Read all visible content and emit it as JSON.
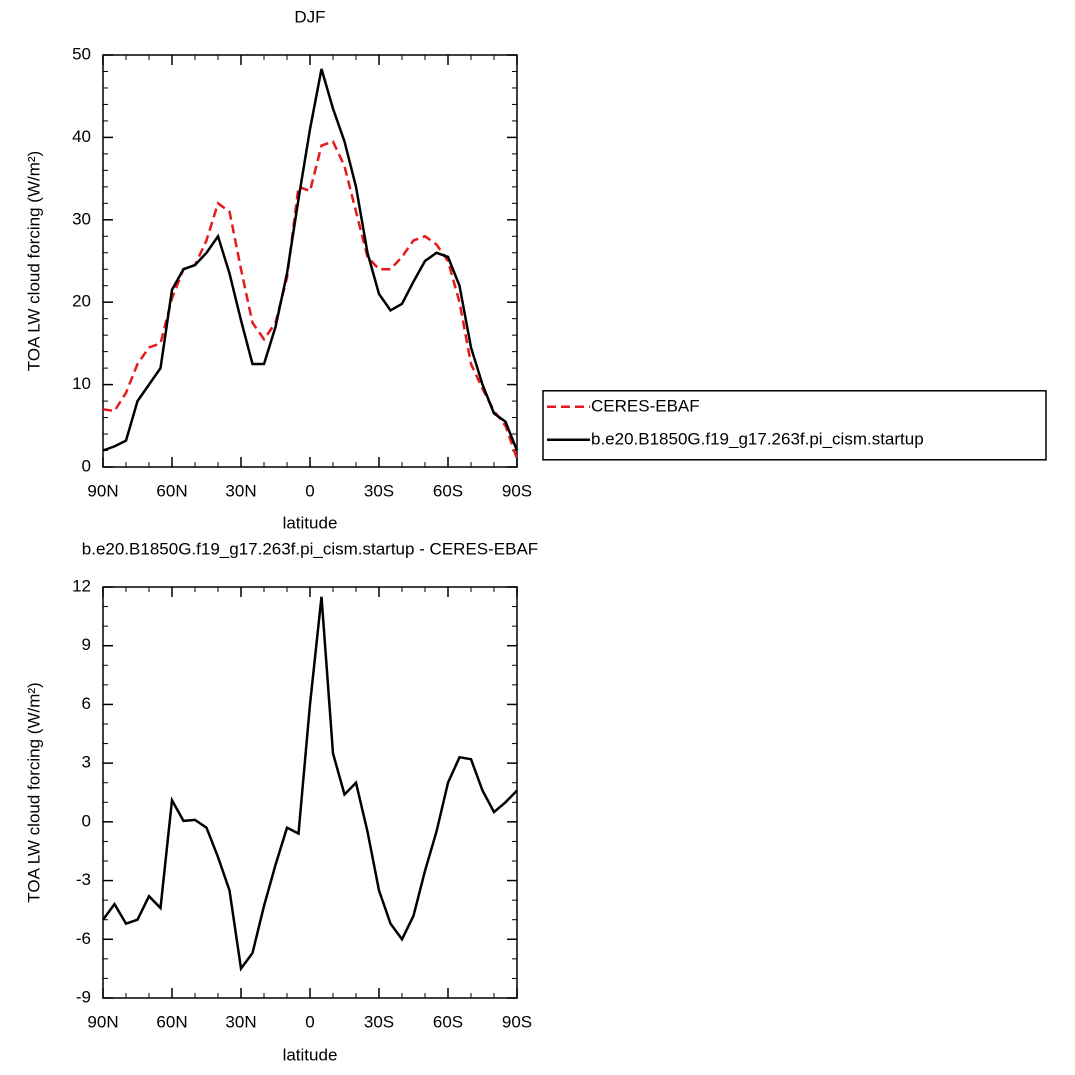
{
  "chart_data": [
    {
      "type": "line",
      "title": "DJF",
      "x_label": "latitude",
      "y_label": "TOA LW cloud forcing (W/m²)",
      "x": [
        90,
        85,
        80,
        75,
        70,
        65,
        60,
        55,
        50,
        45,
        40,
        35,
        30,
        25,
        20,
        15,
        10,
        5,
        0,
        -5,
        -10,
        -15,
        -20,
        -25,
        -30,
        -35,
        -40,
        -45,
        -50,
        -55,
        -60,
        -65,
        -70,
        -75,
        -80,
        -85,
        -90
      ],
      "series": [
        {
          "name": "CERES-EBAF",
          "color": "#e41a1c",
          "dash": "dashed",
          "values": [
            7,
            6.8,
            9,
            12.5,
            14.5,
            15,
            20.5,
            24,
            24.5,
            27.5,
            32,
            31,
            24,
            17.5,
            15.5,
            17.5,
            23,
            34,
            33.5,
            39,
            39.5,
            36.5,
            31,
            25.5,
            24,
            24,
            25.5,
            27.5,
            28,
            27,
            25,
            20,
            12.5,
            9.5,
            6.8,
            5,
            1
          ]
        },
        {
          "name": "b.e20.B1850G.f19_g17.263f.pi_cism.startup",
          "color": "#000000",
          "dash": "solid",
          "values": [
            2,
            2.5,
            3.2,
            8,
            10,
            12,
            21.5,
            24,
            24.5,
            26,
            28,
            23.5,
            17.8,
            12.5,
            12.5,
            17,
            23.5,
            32.5,
            41,
            48.3,
            43.5,
            39.5,
            34,
            26,
            21,
            19,
            19.8,
            22.5,
            25,
            26,
            25.5,
            22,
            14.5,
            10,
            6.5,
            5.5,
            2
          ]
        }
      ],
      "xlim": [
        90,
        -90
      ],
      "xticks": [
        {
          "value": 90,
          "label": "90N"
        },
        {
          "value": 60,
          "label": "60N"
        },
        {
          "value": 30,
          "label": "30N"
        },
        0,
        {
          "value": -30,
          "label": "30S"
        },
        {
          "value": -60,
          "label": "60S"
        },
        {
          "value": -90,
          "label": "90S"
        }
      ],
      "ylim": [
        0,
        50
      ],
      "yticks": [
        0,
        10,
        20,
        30,
        40,
        50
      ],
      "legend": "right"
    },
    {
      "type": "line",
      "title": "b.e20.B1850G.f19_g17.263f.pi_cism.startup - CERES-EBAF",
      "x_label": "latitude",
      "y_label": "TOA LW cloud forcing (W/m²)",
      "x": [
        90,
        85,
        80,
        75,
        70,
        65,
        60,
        55,
        50,
        45,
        40,
        35,
        30,
        25,
        20,
        15,
        10,
        5,
        0,
        -5,
        -10,
        -15,
        -20,
        -25,
        -30,
        -35,
        -40,
        -45,
        -50,
        -55,
        -60,
        -65,
        -70,
        -75,
        -80,
        -85,
        -90
      ],
      "color": "#000000",
      "values": [
        -5,
        -4.2,
        -5.2,
        -5,
        -3.8,
        -4.4,
        1.1,
        0.05,
        0.1,
        -0.3,
        -1.8,
        -3.5,
        -7.5,
        -6.7,
        -4.3,
        -2.2,
        -0.3,
        -0.6,
        6,
        11.5,
        3.5,
        1.4,
        2,
        -0.5,
        -3.5,
        -5.2,
        -6,
        -4.8,
        -2.5,
        -0.5,
        2,
        3.3,
        3.2,
        1.6,
        0.5,
        1,
        1.6
      ],
      "xlim": [
        90,
        -90
      ],
      "xticks": [
        {
          "value": 90,
          "label": "90N"
        },
        {
          "value": 60,
          "label": "60N"
        },
        {
          "value": 30,
          "label": "30N"
        },
        0,
        {
          "value": -30,
          "label": "30S"
        },
        {
          "value": -60,
          "label": "60S"
        },
        {
          "value": -90,
          "label": "90S"
        }
      ],
      "ylim": [
        -9,
        12
      ],
      "yticks": [
        -9,
        -6,
        -3,
        0,
        3,
        6,
        9,
        12
      ]
    }
  ]
}
